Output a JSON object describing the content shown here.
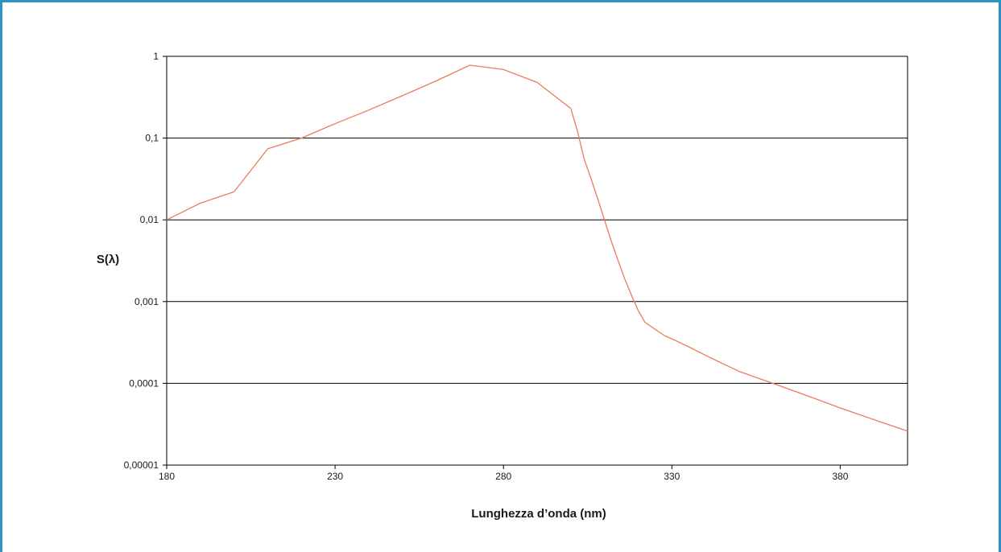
{
  "chart_data": {
    "type": "line",
    "xlabel": "Lunghezza d’onda (nm)",
    "ylabel": "S(λ)",
    "xlim": [
      180,
      400
    ],
    "ylim": [
      1e-05,
      1
    ],
    "yscale": "log",
    "grid": "horizontal",
    "x_ticks": [
      "180",
      "230",
      "280",
      "330",
      "380"
    ],
    "y_ticks": [
      "1",
      "0,1",
      "0,01",
      "0,001",
      "0,0001",
      "0,00001"
    ],
    "series": [
      {
        "color": "#ea7b5f",
        "x": [
          180,
          190,
          200,
          210,
          220,
          230,
          240,
          250,
          260,
          270,
          280,
          290,
          300,
          302,
          304,
          306,
          308,
          310,
          312,
          314,
          316,
          318,
          320,
          322,
          324,
          326,
          328,
          330,
          335,
          340,
          345,
          350,
          360,
          370,
          380,
          390,
          400
        ],
        "y": [
          0.01,
          0.016,
          0.022,
          0.074,
          0.1,
          0.15,
          0.22,
          0.33,
          0.5,
          0.78,
          0.69,
          0.48,
          0.23,
          0.12,
          0.055,
          0.032,
          0.018,
          0.01,
          0.0055,
          0.0032,
          0.0019,
          0.0012,
          0.00078,
          0.00056,
          0.00049,
          0.00043,
          0.00038,
          0.00035,
          0.00028,
          0.00022,
          0.000175,
          0.00014,
          0.0001,
          7.1e-05,
          5e-05,
          3.6e-05,
          2.6e-05
        ]
      }
    ]
  }
}
